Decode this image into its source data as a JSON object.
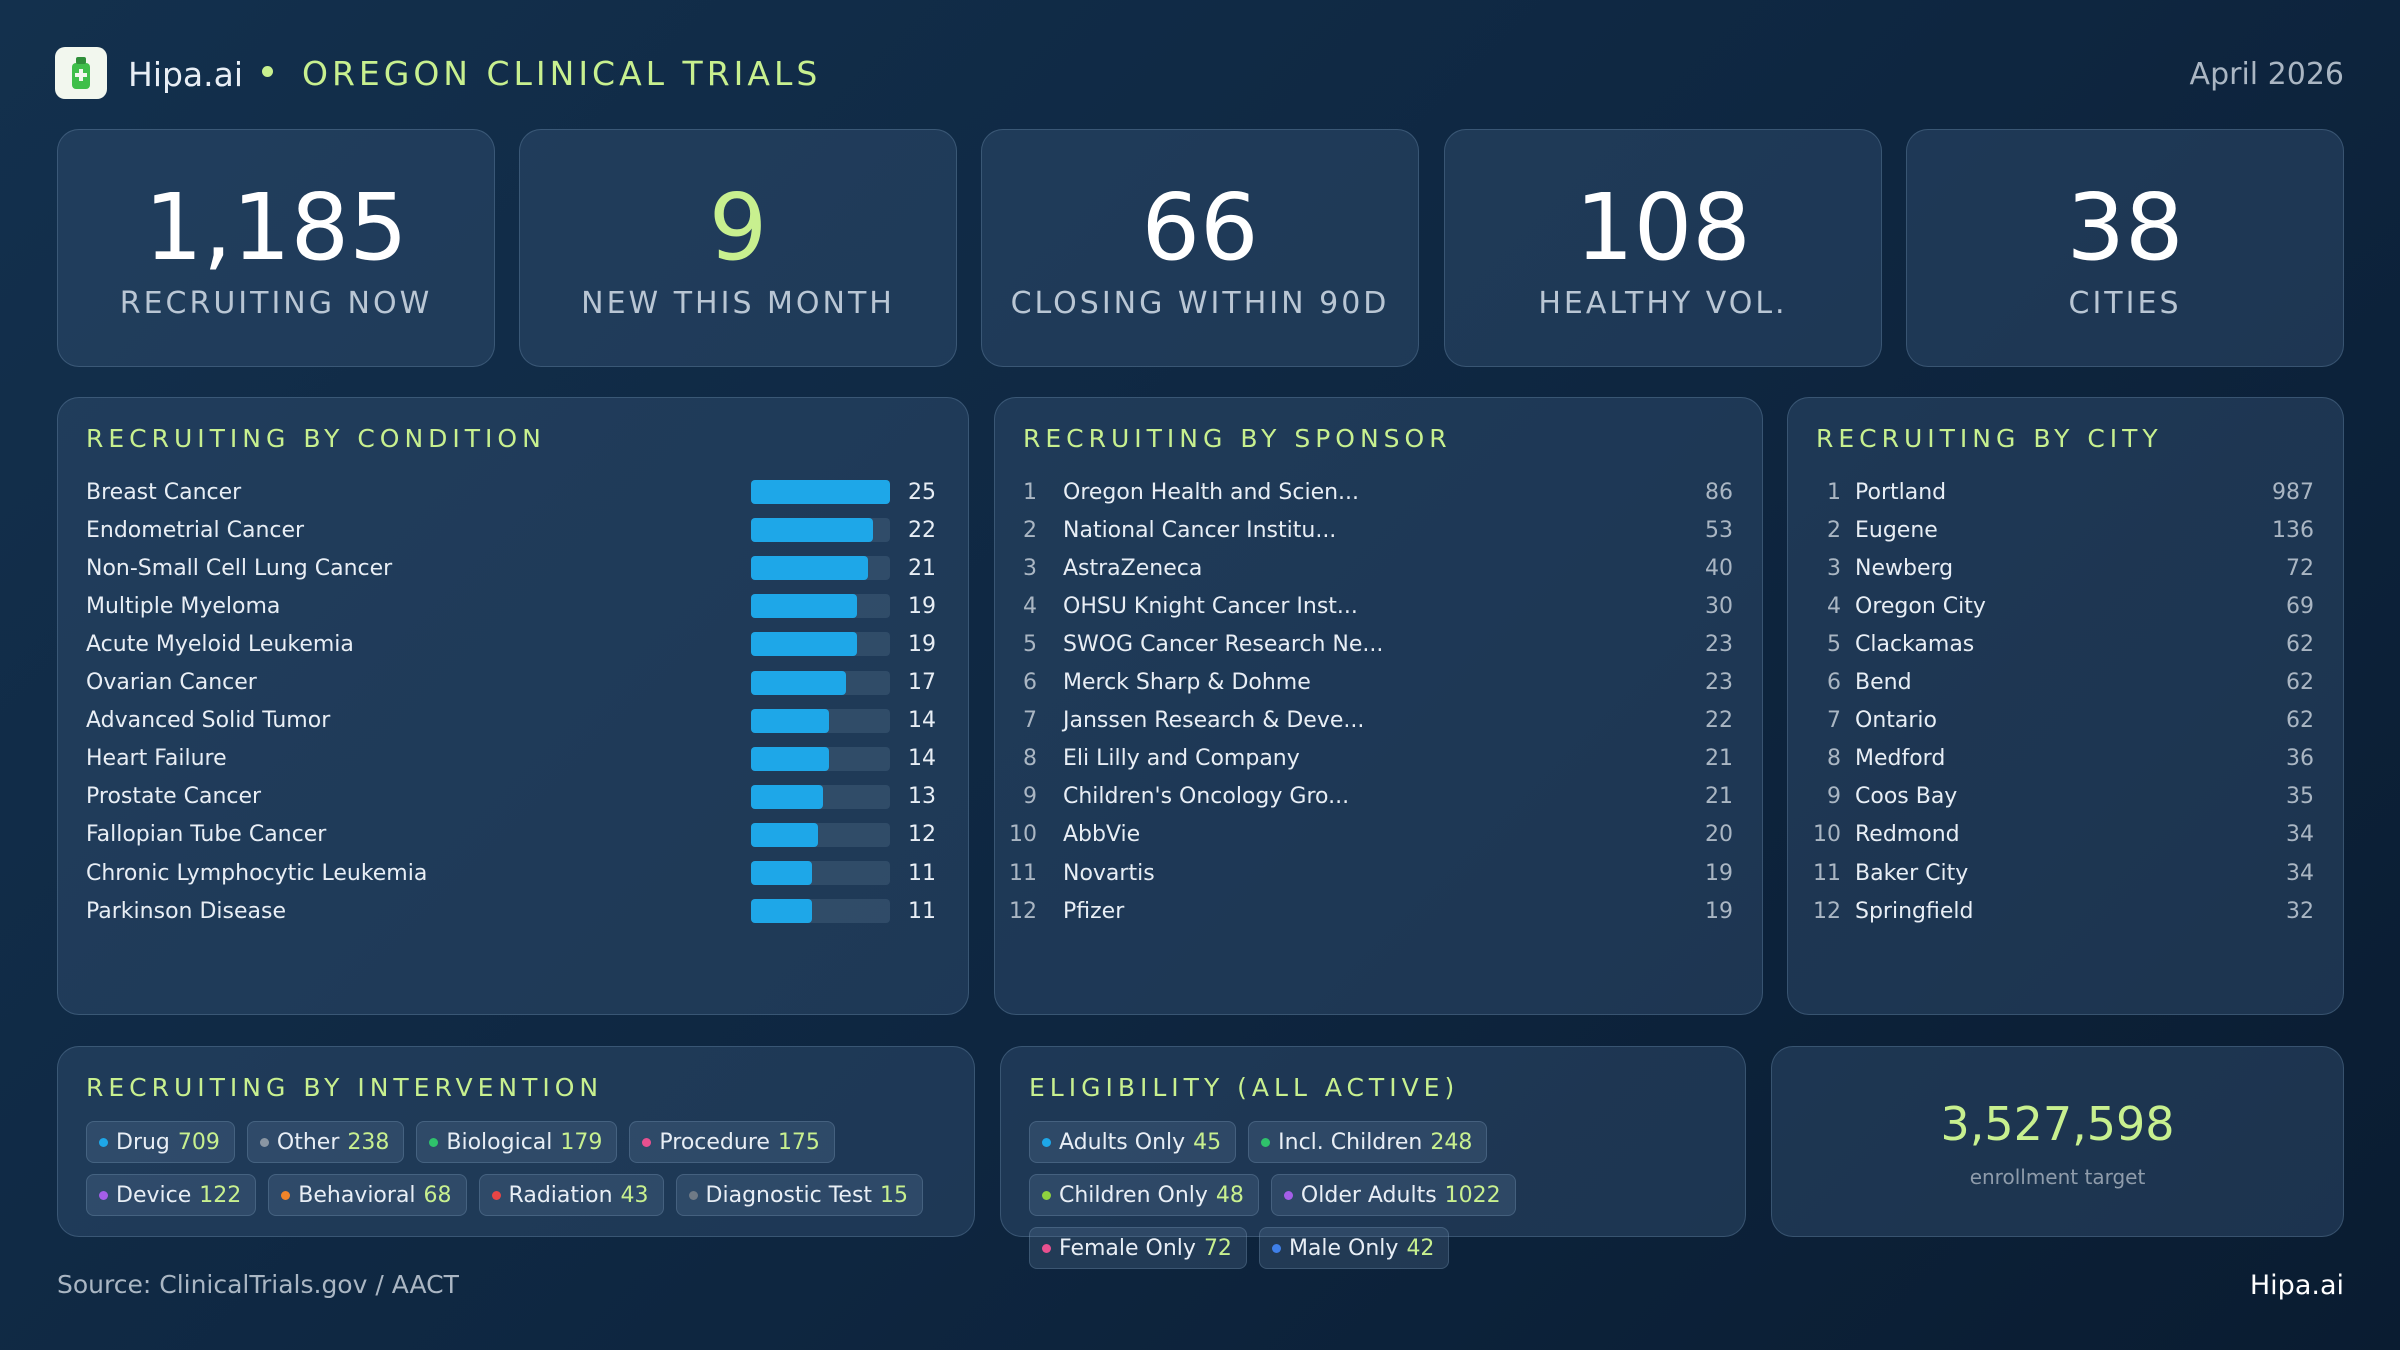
{
  "header": {
    "brand": "Hipa.ai",
    "title": "OREGON CLINICAL TRIALS",
    "date": "April 2026"
  },
  "kpis": [
    {
      "value": "1,185",
      "label": "RECRUITING NOW",
      "color": "#ffffff"
    },
    {
      "value": "9",
      "label": "NEW THIS MONTH",
      "color": "#c8f08f"
    },
    {
      "value": "66",
      "label": "CLOSING WITHIN 90D",
      "color": "#ffffff"
    },
    {
      "value": "108",
      "label": "HEALTHY VOL.",
      "color": "#ffffff"
    },
    {
      "value": "38",
      "label": "CITIES",
      "color": "#ffffff"
    }
  ],
  "conditions": {
    "title": "RECRUITING BY CONDITION",
    "color": "#1ea7e8",
    "rows": [
      {
        "name": "Breast Cancer",
        "value": 25
      },
      {
        "name": "Endometrial Cancer",
        "value": 22
      },
      {
        "name": "Non-Small Cell Lung Cancer",
        "value": 21
      },
      {
        "name": "Multiple Myeloma",
        "value": 19
      },
      {
        "name": "Acute Myeloid Leukemia",
        "value": 19
      },
      {
        "name": "Ovarian Cancer",
        "value": 17
      },
      {
        "name": "Advanced Solid Tumor",
        "value": 14
      },
      {
        "name": "Heart Failure",
        "value": 14
      },
      {
        "name": "Prostate Cancer",
        "value": 13
      },
      {
        "name": "Fallopian Tube Cancer",
        "value": 12
      },
      {
        "name": "Chronic Lymphocytic Leukemia",
        "value": 11
      },
      {
        "name": "Parkinson Disease",
        "value": 11
      }
    ]
  },
  "sponsors": {
    "title": "RECRUITING BY SPONSOR",
    "rows": [
      {
        "rank": 1,
        "name": "Oregon Health and Scien...",
        "value": 86
      },
      {
        "rank": 2,
        "name": "National Cancer Institu...",
        "value": 53
      },
      {
        "rank": 3,
        "name": "AstraZeneca",
        "value": 40
      },
      {
        "rank": 4,
        "name": "OHSU Knight Cancer Inst...",
        "value": 30
      },
      {
        "rank": 5,
        "name": "SWOG Cancer Research Ne...",
        "value": 23
      },
      {
        "rank": 6,
        "name": "Merck Sharp & Dohme",
        "value": 23
      },
      {
        "rank": 7,
        "name": "Janssen Research & Deve...",
        "value": 22
      },
      {
        "rank": 8,
        "name": "Eli Lilly and Company",
        "value": 21
      },
      {
        "rank": 9,
        "name": "Children's Oncology Gro...",
        "value": 21
      },
      {
        "rank": 10,
        "name": "AbbVie",
        "value": 20
      },
      {
        "rank": 11,
        "name": "Novartis",
        "value": 19
      },
      {
        "rank": 12,
        "name": "Pfizer",
        "value": 19
      }
    ]
  },
  "cities": {
    "title": "RECRUITING BY CITY",
    "rows": [
      {
        "rank": 1,
        "name": "Portland",
        "value": 987
      },
      {
        "rank": 2,
        "name": "Eugene",
        "value": 136
      },
      {
        "rank": 3,
        "name": "Newberg",
        "value": 72
      },
      {
        "rank": 4,
        "name": "Oregon City",
        "value": 69
      },
      {
        "rank": 5,
        "name": "Clackamas",
        "value": 62
      },
      {
        "rank": 6,
        "name": "Bend",
        "value": 62
      },
      {
        "rank": 7,
        "name": "Ontario",
        "value": 62
      },
      {
        "rank": 8,
        "name": "Medford",
        "value": 36
      },
      {
        "rank": 9,
        "name": "Coos Bay",
        "value": 35
      },
      {
        "rank": 10,
        "name": "Redmond",
        "value": 34
      },
      {
        "rank": 11,
        "name": "Baker City",
        "value": 34
      },
      {
        "rank": 12,
        "name": "Springfield",
        "value": 32
      }
    ]
  },
  "interventions": {
    "title": "RECRUITING BY INTERVENTION",
    "chips": [
      {
        "name": "Drug",
        "value": 709,
        "color": "#1ea7e8"
      },
      {
        "name": "Other",
        "value": 238,
        "color": "#8a96a3"
      },
      {
        "name": "Biological",
        "value": 179,
        "color": "#2fc26b"
      },
      {
        "name": "Procedure",
        "value": 175,
        "color": "#e8508f"
      },
      {
        "name": "Device",
        "value": 122,
        "color": "#a45ee8"
      },
      {
        "name": "Behavioral",
        "value": 68,
        "color": "#f0842a"
      },
      {
        "name": "Radiation",
        "value": 43,
        "color": "#e84545"
      },
      {
        "name": "Diagnostic Test",
        "value": 15,
        "color": "#6f7a86"
      }
    ]
  },
  "eligibility": {
    "title": "ELIGIBILITY (ALL ACTIVE)",
    "chips": [
      {
        "name": "Adults Only",
        "value": 45,
        "color": "#1ea7e8"
      },
      {
        "name": "Incl. Children",
        "value": 248,
        "color": "#2fc26b"
      },
      {
        "name": "Children Only",
        "value": 48,
        "color": "#8fd13f"
      },
      {
        "name": "Older Adults",
        "value": 1022,
        "color": "#a45ee8"
      },
      {
        "name": "Female Only",
        "value": 72,
        "color": "#e8508f"
      },
      {
        "name": "Male Only",
        "value": 42,
        "color": "#3f7fe8"
      }
    ]
  },
  "target": {
    "value": "3,527,598",
    "label": "enrollment target"
  },
  "footer": {
    "source": "Source: ClinicalTrials.gov / AACT",
    "brand": "Hipa.ai"
  }
}
